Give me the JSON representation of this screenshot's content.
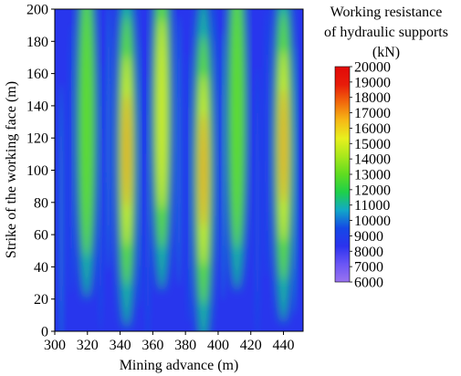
{
  "chart_data": {
    "type": "heatmap",
    "title": "",
    "xlabel": "Mining advance (m)",
    "ylabel": "Strike of the working face (m)",
    "xlim": [
      300,
      452
    ],
    "ylim": [
      0,
      200
    ],
    "x_ticks": [
      "300",
      "320",
      "340",
      "360",
      "380",
      "400",
      "420",
      "440"
    ],
    "y_ticks": [
      "0",
      "20",
      "40",
      "60",
      "80",
      "100",
      "120",
      "140",
      "160",
      "180",
      "200"
    ],
    "colorbar": {
      "title": [
        "Working resistance",
        "of hydraulic supports",
        "(kN)"
      ],
      "min": 6000,
      "max": 20000,
      "ticks": [
        "20000",
        "19000",
        "18000",
        "17000",
        "16000",
        "15000",
        "14000",
        "13000",
        "12000",
        "11000",
        "10000",
        "9000",
        "8000",
        "7000",
        "6000"
      ],
      "colors": [
        "#9a73f0",
        "#6a55f5",
        "#2b33ee",
        "#1548e6",
        "#12a8c8",
        "#1ed04a",
        "#5fdc20",
        "#a8e81c",
        "#e8f01e",
        "#f6b916",
        "#f26a0c",
        "#e81c0a",
        "#e20808"
      ]
    },
    "background_value": 8500,
    "ridges": [
      {
        "x": 319.5,
        "y": 130,
        "value": 14500
      },
      {
        "x": 344,
        "y": 112,
        "value": 17500
      },
      {
        "x": 365.5,
        "y": 135,
        "value": 15500
      },
      {
        "x": 391,
        "y": 100,
        "value": 18000
      },
      {
        "x": 411.5,
        "y": 135,
        "value": 14000
      },
      {
        "x": 440,
        "y": 115,
        "value": 17500
      }
    ]
  }
}
